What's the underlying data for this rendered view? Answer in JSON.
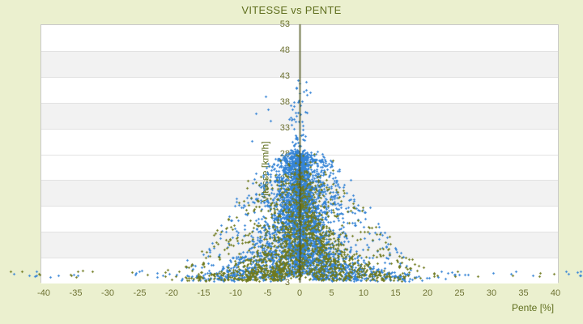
{
  "chart_data": {
    "type": "scatter",
    "title": "VITESSE vs PENTE",
    "xlabel": "Pente [%]",
    "ylabel": "Vitesse [km/h]",
    "xlim": [
      -40.5,
      40.6
    ],
    "ylim": [
      3,
      53
    ],
    "x_ticks": [
      -40,
      -35,
      -30,
      -25,
      -20,
      -15,
      -10,
      -5,
      0,
      5,
      10,
      15,
      20,
      25,
      30,
      35,
      40
    ],
    "y_ticks": [
      3,
      8,
      13,
      18,
      23,
      28,
      33,
      38,
      43,
      48,
      53
    ],
    "grid": "horizontal-bands",
    "legend": "none",
    "axis_line_x": 0,
    "series": [
      {
        "name": "vitesse-blue",
        "marker": "plus",
        "color": "#3584d6"
      },
      {
        "name": "vitesse-olive",
        "marker": "plus",
        "color": "#6f7a1e"
      }
    ],
    "observed_points": [
      {
        "pente": -0.3,
        "vitesse": 42.2,
        "series": 0
      },
      {
        "pente": 0.6,
        "vitesse": 40.0,
        "series": 0
      },
      {
        "pente": -0.2,
        "vitesse": 38.0,
        "series": 0
      },
      {
        "pente": -5.3,
        "vitesse": 39.0,
        "series": 0
      },
      {
        "pente": -4.9,
        "vitesse": 36.5,
        "series": 0
      },
      {
        "pente": -6.8,
        "vitesse": 35.8,
        "series": 0
      },
      {
        "pente": -4.5,
        "vitesse": 34.3,
        "series": 0
      },
      {
        "pente": -7.5,
        "vitesse": 30.5,
        "series": 0
      },
      {
        "pente": -41.2,
        "vitesse": 5.2,
        "series": 0
      },
      {
        "pente": -43.4,
        "vitesse": 5.2,
        "series": 1
      },
      {
        "pente": -45.2,
        "vitesse": 5.2,
        "series": 1
      },
      {
        "pente": 41.7,
        "vitesse": 5.2,
        "series": 0
      },
      {
        "pente": 43.9,
        "vitesse": 5.2,
        "series": 0
      }
    ],
    "point_cloud": {
      "seed": 42,
      "envelope": {
        "base": 4,
        "amp": 24,
        "width": 13,
        "power": 2.6
      },
      "core_blue": {
        "count": 2200,
        "laplace_scale": 2.3,
        "s_clip": 14,
        "v_bias": 0.75
      },
      "core_olive": {
        "count": 520,
        "laplace_scale": 4.5,
        "s_clip": 21,
        "amp": 21,
        "width": 14,
        "power": 2.4,
        "v_bias": 0.9
      },
      "arcs": {
        "count": 170,
        "blue_ratio": 0.6,
        "vmax_min": 6,
        "vmax_span": 22,
        "pts_min": 8,
        "pts_span": 13
      },
      "spike": {
        "count": 90,
        "s_sigma": 0.7,
        "v_min": 27,
        "v_span": 15
      },
      "column": {
        "count": 320,
        "s_sigma": 1.0,
        "v_min": 4.5,
        "v_span": 23
      },
      "bottom_row": {
        "count": 150,
        "s_max": 45,
        "v_mean": 4.6,
        "olive_ratio": 0.35
      },
      "dust": {
        "count": 220,
        "s_span": 36,
        "olive_ratio": 0.5
      }
    },
    "style": {
      "background": "#ebf0cf",
      "title_color": "#5f6e1e",
      "tick_color": "#6e7233",
      "axis_title_color": "#5f6e1e",
      "axis_line_color": "#4b531a",
      "plot_bg": "#ffffff",
      "band_gray": "#f2f2f2",
      "gridline": "#e2e2e2",
      "plot_border": "#c9c9c9",
      "band_pattern_top_to_bottom": [
        "#ffffff",
        "#f2f2f2",
        "#ffffff",
        "#f2f2f2",
        "#ffffff",
        "#ffffff",
        "#f2f2f2",
        "#ffffff",
        "#f2f2f2",
        "#ffffff"
      ]
    }
  }
}
